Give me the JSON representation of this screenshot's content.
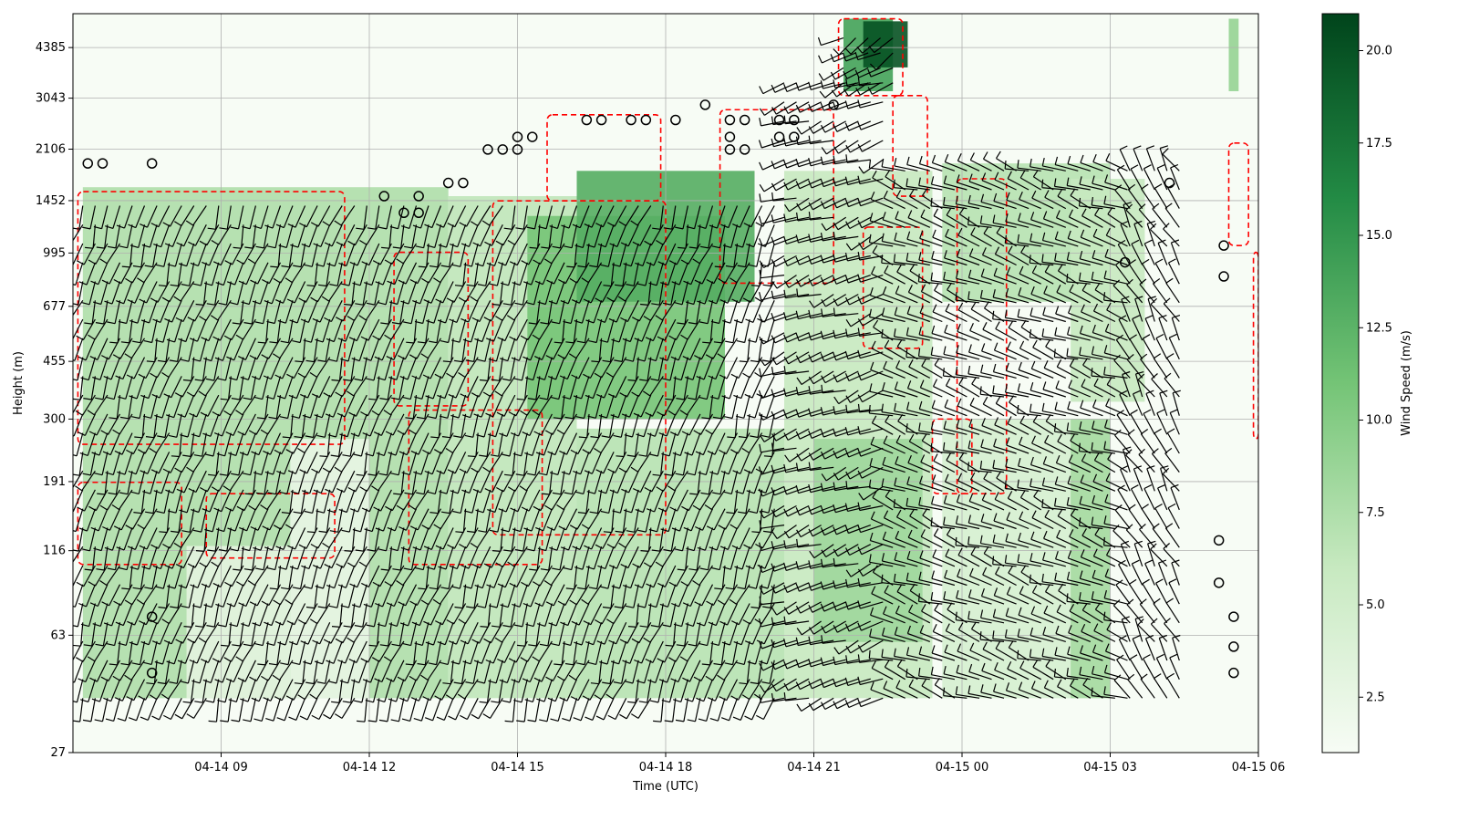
{
  "chart_data": {
    "type": "heatmap",
    "title": "",
    "xlabel": "Time (UTC)",
    "ylabel": "Height (m)",
    "x_range": [
      "04-14 06:00",
      "04-15 06:00"
    ],
    "x_tick_labels": [
      "04-14 09",
      "04-14 12",
      "04-14 15",
      "04-14 18",
      "04-14 21",
      "04-15 00",
      "04-15 03",
      "04-15 06"
    ],
    "x_tick_hours": [
      3,
      6,
      9,
      12,
      15,
      18,
      21,
      24
    ],
    "y_scale": "log",
    "y_range": [
      27,
      5600
    ],
    "y_tick_labels": [
      "27",
      "63",
      "116",
      "191",
      "300",
      "455",
      "677",
      "995",
      "1452",
      "2106",
      "3043",
      "4385"
    ],
    "y_tick_values": [
      27,
      63,
      116,
      191,
      300,
      455,
      677,
      995,
      1452,
      2106,
      3043,
      4385
    ],
    "grid": true,
    "colorbar": {
      "label": "Wind Speed (m/s)",
      "colormap": "Greens",
      "range": [
        1.0,
        21.0
      ],
      "tick_labels": [
        "2.5",
        "5.0",
        "7.5",
        "10.0",
        "12.5",
        "15.0",
        "17.5",
        "20.0"
      ],
      "tick_values": [
        2.5,
        5.0,
        7.5,
        10.0,
        12.5,
        15.0,
        17.5,
        20.0
      ]
    },
    "colors": {
      "cmap_low": "#f7fcf5",
      "cmap_mid": "#41ab5d",
      "cmap_high": "#00441b",
      "contour": "#ff0000",
      "barb": "#000000"
    },
    "series": [
      {
        "kind": "wind_speed_field",
        "regions": [
          {
            "t": [
              0.2,
              7.6
            ],
            "z": [
              40,
              1600
            ],
            "speed": 7.5
          },
          {
            "t": [
              2.3,
              4.4
            ],
            "z": [
              40,
              120
            ],
            "speed": 3.0
          },
          {
            "t": [
              4.4,
              6.0
            ],
            "z": [
              40,
              260
            ],
            "speed": 2.5
          },
          {
            "t": [
              7.6,
              10.2
            ],
            "z": [
              40,
              1500
            ],
            "speed": 6.5
          },
          {
            "t": [
              9.2,
              13.2
            ],
            "z": [
              300,
              1300
            ],
            "speed": 11.0
          },
          {
            "t": [
              10.2,
              13.8
            ],
            "z": [
              700,
              1800
            ],
            "speed": 13.0
          },
          {
            "t": [
              10.2,
              14.4
            ],
            "z": [
              40,
              280
            ],
            "speed": 7.0
          },
          {
            "t": [
              14.4,
              17.4
            ],
            "z": [
              40,
              1800
            ],
            "speed": 6.0
          },
          {
            "t": [
              15.0,
              17.2
            ],
            "z": [
              60,
              260
            ],
            "speed": 8.5
          },
          {
            "t": [
              15.6,
              16.6
            ],
            "z": [
              3200,
              5400
            ],
            "speed": 14.0
          },
          {
            "t": [
              16.0,
              16.9
            ],
            "z": [
              3800,
              5300
            ],
            "speed": 20.0
          },
          {
            "t": [
              17.6,
              21.0
            ],
            "z": [
              700,
              1900
            ],
            "speed": 7.0
          },
          {
            "t": [
              17.6,
              21.0
            ],
            "z": [
              40,
              300
            ],
            "speed": 4.5
          },
          {
            "t": [
              20.2,
              21.0
            ],
            "z": [
              40,
              300
            ],
            "speed": 8.0
          },
          {
            "t": [
              20.2,
              21.7
            ],
            "z": [
              340,
              1700
            ],
            "speed": 6.0
          },
          {
            "t": [
              23.4,
              23.6
            ],
            "z": [
              3200,
              5400
            ],
            "speed": 9.0
          }
        ]
      },
      {
        "kind": "speed_contour_10ms",
        "regions": [
          {
            "t": [
              0.1,
              5.5
            ],
            "z": [
              250,
              1550
            ]
          },
          {
            "t": [
              0.1,
              2.2
            ],
            "z": [
              105,
              190
            ]
          },
          {
            "t": [
              2.7,
              5.3
            ],
            "z": [
              110,
              175
            ]
          },
          {
            "t": [
              6.5,
              8.0
            ],
            "z": [
              330,
              1000
            ]
          },
          {
            "t": [
              6.8,
              9.5
            ],
            "z": [
              105,
              320
            ]
          },
          {
            "t": [
              8.5,
              12.0
            ],
            "z": [
              130,
              1450
            ]
          },
          {
            "t": [
              9.6,
              11.9
            ],
            "z": [
              1450,
              2700
            ]
          },
          {
            "t": [
              13.1,
              15.4
            ],
            "z": [
              800,
              2800
            ]
          },
          {
            "t": [
              15.5,
              16.8
            ],
            "z": [
              3100,
              5400
            ]
          },
          {
            "t": [
              16.6,
              17.3
            ],
            "z": [
              1500,
              3100
            ]
          },
          {
            "t": [
              16.0,
              17.2
            ],
            "z": [
              500,
              1200
            ]
          },
          {
            "t": [
              17.4,
              18.2
            ],
            "z": [
              175,
              300
            ]
          },
          {
            "t": [
              17.9,
              18.9
            ],
            "z": [
              175,
              1700
            ]
          },
          {
            "t": [
              23.4,
              23.8
            ],
            "z": [
              1050,
              2200
            ]
          },
          {
            "t": [
              23.9,
              24.0
            ],
            "z": [
              260,
              1000
            ]
          }
        ]
      },
      {
        "kind": "calm_circles",
        "points": [
          [
            0.3,
            1900
          ],
          [
            0.6,
            1900
          ],
          [
            1.6,
            1900
          ],
          [
            1.6,
            72
          ],
          [
            1.6,
            48
          ],
          [
            6.3,
            1500
          ],
          [
            6.7,
            1330
          ],
          [
            7.0,
            1330
          ],
          [
            7.0,
            1500
          ],
          [
            7.6,
            1650
          ],
          [
            7.9,
            1650
          ],
          [
            8.4,
            2100
          ],
          [
            8.7,
            2100
          ],
          [
            9.0,
            2100
          ],
          [
            9.0,
            2300
          ],
          [
            9.3,
            2300
          ],
          [
            10.4,
            2600
          ],
          [
            10.7,
            2600
          ],
          [
            11.3,
            2600
          ],
          [
            11.6,
            2600
          ],
          [
            12.2,
            2600
          ],
          [
            12.8,
            2900
          ],
          [
            13.3,
            2600
          ],
          [
            13.6,
            2600
          ],
          [
            13.3,
            2300
          ],
          [
            13.3,
            2100
          ],
          [
            13.6,
            2100
          ],
          [
            14.3,
            2600
          ],
          [
            14.6,
            2600
          ],
          [
            14.3,
            2300
          ],
          [
            14.6,
            2300
          ],
          [
            15.4,
            2900
          ],
          [
            21.3,
            930
          ],
          [
            22.2,
            1650
          ],
          [
            23.3,
            1050
          ],
          [
            23.3,
            840
          ],
          [
            23.2,
            125
          ],
          [
            23.2,
            92
          ],
          [
            23.5,
            72
          ],
          [
            23.5,
            58
          ],
          [
            23.5,
            48
          ]
        ]
      },
      {
        "kind": "wind_barbs",
        "columns": [
          {
            "t_range": [
              0.2,
              14.4
            ],
            "z_range": [
              40,
              1400
            ],
            "direction_deg": 200
          },
          {
            "t_range": [
              14.4,
              16.6
            ],
            "z_range": [
              40,
              3400
            ],
            "direction_deg": 250
          },
          {
            "t_range": [
              15.6,
              16.6
            ],
            "z_range": [
              3400,
              4700
            ],
            "direction_deg": 240
          },
          {
            "t_range": [
              16.6,
              21.4
            ],
            "z_range": [
              40,
              1800
            ],
            "direction_deg": 290
          },
          {
            "t_range": [
              21.4,
              22.6
            ],
            "z_range": [
              40,
              1800
            ],
            "direction_deg": 330
          }
        ]
      }
    ]
  }
}
